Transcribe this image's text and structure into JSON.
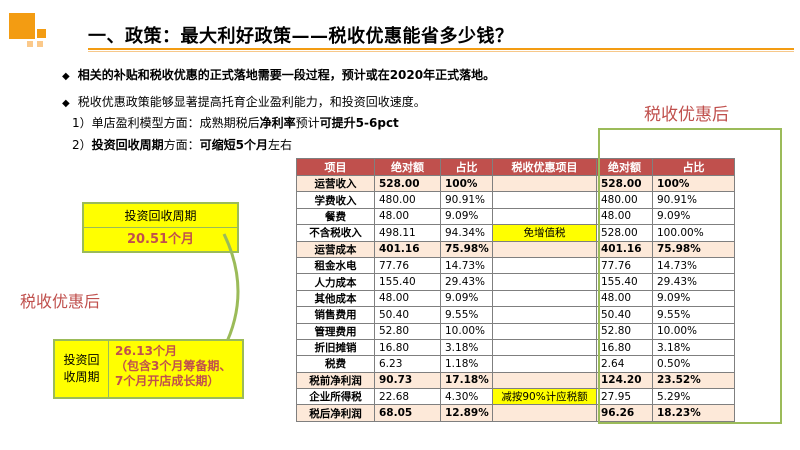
{
  "header": {
    "title": "一、政策：最大利好政策——税收优惠能省多少钱？"
  },
  "bullets": {
    "b1": "相关的补贴和税收优惠的正式落地需要一段过程，预计或在2020年正式落地。",
    "b2": "税收优惠政策能够显著提高托育企业盈利能力，和投资回收速度。",
    "marker": "◆"
  },
  "lines": {
    "l3_prefix": "1）单店盈利模型方面：成熟期税后",
    "l3_bold1": "净利率",
    "l3_mid": "预计",
    "l3_bold2": "可提升5-6pct",
    "l4_prefix": "2）",
    "l4_bold1": "投资回收周期",
    "l4_mid": "方面：",
    "l4_bold2": "可缩短5个月",
    "l4_suffix": "左右"
  },
  "labels": {
    "after_top": "税收优惠后",
    "after_left": "税收优惠后"
  },
  "payback_after": {
    "header": "投资回收周期",
    "value": "20.51个月"
  },
  "payback_before": {
    "label_line1": "投资回",
    "label_line2": "收周期",
    "text_line1": "26.13个月",
    "text_line2": "（包含3个月筹备期、",
    "text_line3": "7个月开店成长期）"
  },
  "table": {
    "headers": [
      "项目",
      "绝对额",
      "占比",
      "税收优惠项目",
      "绝对额",
      "占比"
    ],
    "rows": [
      {
        "item": "运营收入",
        "a1": "528.00",
        "p1": "100%",
        "mid": "",
        "a2": "528.00",
        "p2": "100%",
        "hl": true
      },
      {
        "item": "学费收入",
        "a1": "480.00",
        "p1": "90.91%",
        "mid": "",
        "a2": "480.00",
        "p2": "90.91%",
        "hl": false
      },
      {
        "item": "餐费",
        "a1": "48.00",
        "p1": "9.09%",
        "mid": "",
        "a2": "48.00",
        "p2": "9.09%",
        "hl": false
      },
      {
        "item": "不含税收入",
        "a1": "498.11",
        "p1": "94.34%",
        "mid": "免增值税",
        "a2": "528.00",
        "p2": "100.00%",
        "hl": false
      },
      {
        "item": "运营成本",
        "a1": "401.16",
        "p1": "75.98%",
        "mid": "",
        "a2": "401.16",
        "p2": "75.98%",
        "hl": true
      },
      {
        "item": "租金水电",
        "a1": "77.76",
        "p1": "14.73%",
        "mid": "",
        "a2": "77.76",
        "p2": "14.73%",
        "hl": false
      },
      {
        "item": "人力成本",
        "a1": "155.40",
        "p1": "29.43%",
        "mid": "",
        "a2": "155.40",
        "p2": "29.43%",
        "hl": false
      },
      {
        "item": "其他成本",
        "a1": "48.00",
        "p1": "9.09%",
        "mid": "",
        "a2": "48.00",
        "p2": "9.09%",
        "hl": false
      },
      {
        "item": "销售费用",
        "a1": "50.40",
        "p1": "9.55%",
        "mid": "",
        "a2": "50.40",
        "p2": "9.55%",
        "hl": false
      },
      {
        "item": "管理费用",
        "a1": "52.80",
        "p1": "10.00%",
        "mid": "",
        "a2": "52.80",
        "p2": "10.00%",
        "hl": false
      },
      {
        "item": "折旧摊销",
        "a1": "16.80",
        "p1": "3.18%",
        "mid": "",
        "a2": "16.80",
        "p2": "3.18%",
        "hl": false
      },
      {
        "item": "税费",
        "a1": "6.23",
        "p1": "1.18%",
        "mid": "",
        "a2": "2.64",
        "p2": "0.50%",
        "hl": false
      },
      {
        "item": "税前净利润",
        "a1": "90.73",
        "p1": "17.18%",
        "mid": "",
        "a2": "124.20",
        "p2": "23.52%",
        "hl": true
      },
      {
        "item": "企业所得税",
        "a1": "22.68",
        "a1x": "",
        "p1": "4.30%",
        "mid": "减按90%计应税额",
        "a2": "27.95",
        "p2": "5.29%",
        "hl": false
      },
      {
        "item": "税后净利润",
        "a1": "68.05",
        "p1": "12.89%",
        "mid": "",
        "a2": "96.26",
        "p2": "18.23%",
        "hl": true
      }
    ]
  },
  "colors": {
    "accent": "#f39c12",
    "header_red": "#c0504d",
    "highlight_row": "#fde9d9",
    "yellow": "#ffff00",
    "frame_green": "#9bbb59"
  }
}
